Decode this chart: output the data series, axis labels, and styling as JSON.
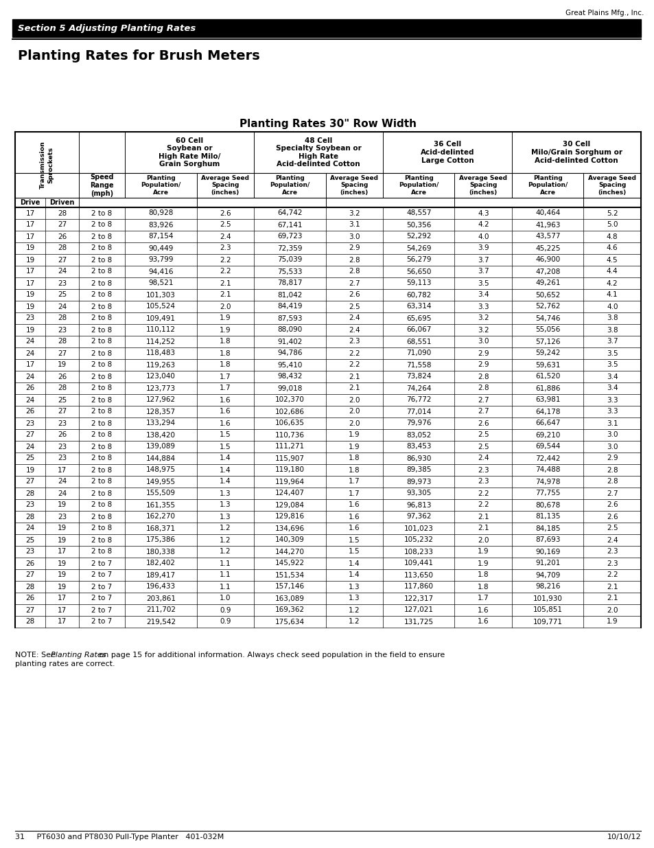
{
  "page_header_right": "Great Plains Mfg., Inc.",
  "section_banner": "Section 5 Adjusting Planting Rates",
  "page_title": "Planting Rates for Brush Meters",
  "table_title": "Planting Rates 30\" Row Width",
  "note_line1": "NOTE: See ",
  "note_italic": "Planting Rates",
  "note_line1b": " on page 15 for additional information. Always check seed population in the field to ensure",
  "note_line2": "planting rates are correct.",
  "footer_left": "31     PT6030 and PT8030 Pull-Type Planter   401-032M",
  "footer_right": "10/10/12",
  "col_group_labels": [
    "60 Cell\nSoybean or\nHigh Rate Milo/\nGrain Sorghum",
    "48 Cell\nSpecialty Soybean or\nHigh Rate\nAcid-delinted Cotton",
    "36 Cell\nAcid-delinted\nLarge Cotton",
    "30 Cell\nMilo/Grain Sorghum or\nAcid-delinted Cotton"
  ],
  "rows": [
    [
      17,
      28,
      "2 to 8",
      "80,928",
      "2.6",
      "64,742",
      "3.2",
      "48,557",
      "4.3",
      "40,464",
      "5.2"
    ],
    [
      17,
      27,
      "2 to 8",
      "83,926",
      "2.5",
      "67,141",
      "3.1",
      "50,356",
      "4.2",
      "41,963",
      "5.0"
    ],
    [
      17,
      26,
      "2 to 8",
      "87,154",
      "2.4",
      "69,723",
      "3.0",
      "52,292",
      "4.0",
      "43,577",
      "4.8"
    ],
    [
      19,
      28,
      "2 to 8",
      "90,449",
      "2.3",
      "72,359",
      "2.9",
      "54,269",
      "3.9",
      "45,225",
      "4.6"
    ],
    [
      19,
      27,
      "2 to 8",
      "93,799",
      "2.2",
      "75,039",
      "2.8",
      "56,279",
      "3.7",
      "46,900",
      "4.5"
    ],
    [
      17,
      24,
      "2 to 8",
      "94,416",
      "2.2",
      "75,533",
      "2.8",
      "56,650",
      "3.7",
      "47,208",
      "4.4"
    ],
    [
      17,
      23,
      "2 to 8",
      "98,521",
      "2.1",
      "78,817",
      "2.7",
      "59,113",
      "3.5",
      "49,261",
      "4.2"
    ],
    [
      19,
      25,
      "2 to 8",
      "101,303",
      "2.1",
      "81,042",
      "2.6",
      "60,782",
      "3.4",
      "50,652",
      "4.1"
    ],
    [
      19,
      24,
      "2 to 8",
      "105,524",
      "2.0",
      "84,419",
      "2.5",
      "63,314",
      "3.3",
      "52,762",
      "4.0"
    ],
    [
      23,
      28,
      "2 to 8",
      "109,491",
      "1.9",
      "87,593",
      "2.4",
      "65,695",
      "3.2",
      "54,746",
      "3.8"
    ],
    [
      19,
      23,
      "2 to 8",
      "110,112",
      "1.9",
      "88,090",
      "2.4",
      "66,067",
      "3.2",
      "55,056",
      "3.8"
    ],
    [
      24,
      28,
      "2 to 8",
      "114,252",
      "1.8",
      "91,402",
      "2.3",
      "68,551",
      "3.0",
      "57,126",
      "3.7"
    ],
    [
      24,
      27,
      "2 to 8",
      "118,483",
      "1.8",
      "94,786",
      "2.2",
      "71,090",
      "2.9",
      "59,242",
      "3.5"
    ],
    [
      17,
      19,
      "2 to 8",
      "119,263",
      "1.8",
      "95,410",
      "2.2",
      "71,558",
      "2.9",
      "59,631",
      "3.5"
    ],
    [
      24,
      26,
      "2 to 8",
      "123,040",
      "1.7",
      "98,432",
      "2.1",
      "73,824",
      "2.8",
      "61,520",
      "3.4"
    ],
    [
      26,
      28,
      "2 to 8",
      "123,773",
      "1.7",
      "99,018",
      "2.1",
      "74,264",
      "2.8",
      "61,886",
      "3.4"
    ],
    [
      24,
      25,
      "2 to 8",
      "127,962",
      "1.6",
      "102,370",
      "2.0",
      "76,772",
      "2.7",
      "63,981",
      "3.3"
    ],
    [
      26,
      27,
      "2 to 8",
      "128,357",
      "1.6",
      "102,686",
      "2.0",
      "77,014",
      "2.7",
      "64,178",
      "3.3"
    ],
    [
      23,
      23,
      "2 to 8",
      "133,294",
      "1.6",
      "106,635",
      "2.0",
      "79,976",
      "2.6",
      "66,647",
      "3.1"
    ],
    [
      27,
      26,
      "2 to 8",
      "138,420",
      "1.5",
      "110,736",
      "1.9",
      "83,052",
      "2.5",
      "69,210",
      "3.0"
    ],
    [
      24,
      23,
      "2 to 8",
      "139,089",
      "1.5",
      "111,271",
      "1.9",
      "83,453",
      "2.5",
      "69,544",
      "3.0"
    ],
    [
      25,
      23,
      "2 to 8",
      "144,884",
      "1.4",
      "115,907",
      "1.8",
      "86,930",
      "2.4",
      "72,442",
      "2.9"
    ],
    [
      19,
      17,
      "2 to 8",
      "148,975",
      "1.4",
      "119,180",
      "1.8",
      "89,385",
      "2.3",
      "74,488",
      "2.8"
    ],
    [
      27,
      24,
      "2 to 8",
      "149,955",
      "1.4",
      "119,964",
      "1.7",
      "89,973",
      "2.3",
      "74,978",
      "2.8"
    ],
    [
      28,
      24,
      "2 to 8",
      "155,509",
      "1.3",
      "124,407",
      "1.7",
      "93,305",
      "2.2",
      "77,755",
      "2.7"
    ],
    [
      23,
      19,
      "2 to 8",
      "161,355",
      "1.3",
      "129,084",
      "1.6",
      "96,813",
      "2.2",
      "80,678",
      "2.6"
    ],
    [
      28,
      23,
      "2 to 8",
      "162,270",
      "1.3",
      "129,816",
      "1.6",
      "97,362",
      "2.1",
      "81,135",
      "2.6"
    ],
    [
      24,
      19,
      "2 to 8",
      "168,371",
      "1.2",
      "134,696",
      "1.6",
      "101,023",
      "2.1",
      "84,185",
      "2.5"
    ],
    [
      25,
      19,
      "2 to 8",
      "175,386",
      "1.2",
      "140,309",
      "1.5",
      "105,232",
      "2.0",
      "87,693",
      "2.4"
    ],
    [
      23,
      17,
      "2 to 8",
      "180,338",
      "1.2",
      "144,270",
      "1.5",
      "108,233",
      "1.9",
      "90,169",
      "2.3"
    ],
    [
      26,
      19,
      "2 to 7",
      "182,402",
      "1.1",
      "145,922",
      "1.4",
      "109,441",
      "1.9",
      "91,201",
      "2.3"
    ],
    [
      27,
      19,
      "2 to 7",
      "189,417",
      "1.1",
      "151,534",
      "1.4",
      "113,650",
      "1.8",
      "94,709",
      "2.2"
    ],
    [
      28,
      19,
      "2 to 7",
      "196,433",
      "1.1",
      "157,146",
      "1.3",
      "117,860",
      "1.8",
      "98,216",
      "2.1"
    ],
    [
      26,
      17,
      "2 to 7",
      "203,861",
      "1.0",
      "163,089",
      "1.3",
      "122,317",
      "1.7",
      "101,930",
      "2.1"
    ],
    [
      27,
      17,
      "2 to 7",
      "211,702",
      "0.9",
      "169,362",
      "1.2",
      "127,021",
      "1.6",
      "105,851",
      "2.0"
    ],
    [
      28,
      17,
      "2 to 7",
      "219,542",
      "0.9",
      "175,634",
      "1.2",
      "131,725",
      "1.6",
      "109,771",
      "1.9"
    ]
  ]
}
